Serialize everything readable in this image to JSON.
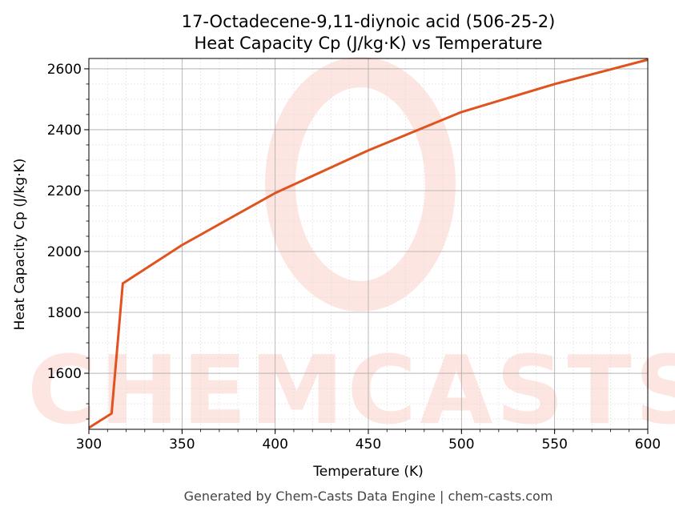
{
  "chart_data": {
    "type": "line",
    "title_line1": "17-Octadecene-9,11-diynoic acid (506-25-2)",
    "title_line2": "Heat Capacity Cp (J/kg·K) vs Temperature",
    "xlabel": "Temperature (K)",
    "ylabel": "Heat Capacity Cp (J/kg·K)",
    "xlim": [
      300,
      600
    ],
    "ylim": [
      1416,
      2634
    ],
    "xticks": [
      300,
      350,
      400,
      450,
      500,
      550,
      600
    ],
    "yticks": [
      1600,
      1800,
      2000,
      2200,
      2400,
      2600
    ],
    "grid": true,
    "series": [
      {
        "color": "#e0531f",
        "x": [
          300,
          312.2,
          318.2,
          350,
          400,
          450,
          500,
          550,
          600
        ],
        "y": [
          1421,
          1468,
          1895,
          2021,
          2192,
          2332,
          2458,
          2550,
          2630
        ]
      }
    ],
    "watermark": "CHEMCASTS",
    "footer": "Generated by Chem-Casts Data Engine | chem-casts.com"
  }
}
